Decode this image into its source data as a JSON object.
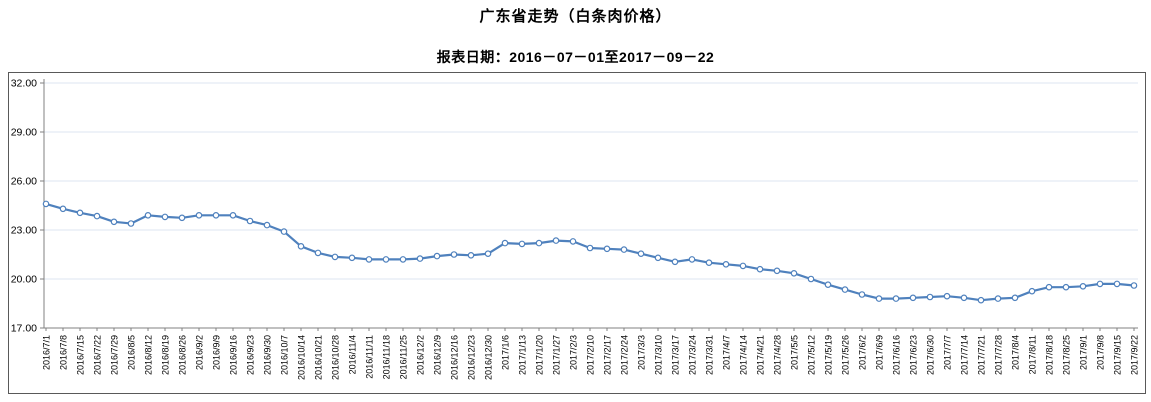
{
  "chart": {
    "title": "广东省走势（白条肉价格）",
    "subtitle": "报表日期：2016－07－01至2017－09－22"
  },
  "colors": {
    "line": "#4F81BD",
    "marker_fill": "#FFFFFF",
    "gridline": "#DCE4F0",
    "axis": "#808080",
    "text": "#000000",
    "box_border": "#595959"
  },
  "chart_data": {
    "type": "line",
    "title": "广东省走势（白条肉价格）",
    "subtitle": "报表日期：2016－07－01至2017－09－22",
    "xlabel": "",
    "ylabel": "",
    "ylim": [
      17,
      32
    ],
    "ytick_labels": [
      "32.00",
      "29.00",
      "26.00",
      "23.00",
      "20.00",
      "17.00"
    ],
    "yticks": [
      32,
      29,
      26,
      23,
      20,
      17
    ],
    "grid": true,
    "legend_position": "none",
    "x": [
      "2016/7/1",
      "2016/7/8",
      "2016/7/15",
      "2016/7/22",
      "2016/7/29",
      "2016/8/5",
      "2016/8/12",
      "2016/8/19",
      "2016/8/26",
      "2016/9/2",
      "2016/9/9",
      "2016/9/16",
      "2016/9/23",
      "2016/9/30",
      "2016/10/7",
      "2016/10/14",
      "2016/10/21",
      "2016/10/28",
      "2016/11/4",
      "2016/11/11",
      "2016/11/18",
      "2016/11/25",
      "2016/12/2",
      "2016/12/9",
      "2016/12/16",
      "2016/12/23",
      "2016/12/30",
      "2017/1/6",
      "2017/1/13",
      "2017/1/20",
      "2017/1/27",
      "2017/2/3",
      "2017/2/10",
      "2017/2/17",
      "2017/2/24",
      "2017/3/3",
      "2017/3/10",
      "2017/3/17",
      "2017/3/24",
      "2017/3/31",
      "2017/4/7",
      "2017/4/14",
      "2017/4/21",
      "2017/4/28",
      "2017/5/5",
      "2017/5/12",
      "2017/5/19",
      "2017/5/26",
      "2017/6/2",
      "2017/6/9",
      "2017/6/16",
      "2017/6/23",
      "2017/6/30",
      "2017/7/7",
      "2017/7/14",
      "2017/7/21",
      "2017/7/28",
      "2017/8/4",
      "2017/8/11",
      "2017/8/18",
      "2017/8/25",
      "2017/9/1",
      "2017/9/8",
      "2017/9/15",
      "2017/9/22"
    ],
    "series": [
      {
        "name": "白条肉价格",
        "values": [
          24.6,
          24.3,
          24.05,
          23.85,
          23.5,
          23.4,
          23.9,
          23.8,
          23.75,
          23.9,
          23.9,
          23.9,
          23.55,
          23.3,
          22.9,
          22.0,
          21.6,
          21.35,
          21.3,
          21.2,
          21.2,
          21.2,
          21.25,
          21.4,
          21.5,
          21.45,
          21.55,
          22.2,
          22.15,
          22.2,
          22.35,
          22.3,
          21.9,
          21.85,
          21.8,
          21.55,
          21.3,
          21.05,
          21.2,
          21.0,
          20.9,
          20.8,
          20.6,
          20.5,
          20.35,
          20.0,
          19.65,
          19.35,
          19.05,
          18.8,
          18.8,
          18.85,
          18.9,
          18.95,
          18.85,
          18.7,
          18.8,
          18.85,
          19.25,
          19.5,
          19.5,
          19.55,
          19.7,
          19.7,
          19.6
        ]
      }
    ]
  }
}
